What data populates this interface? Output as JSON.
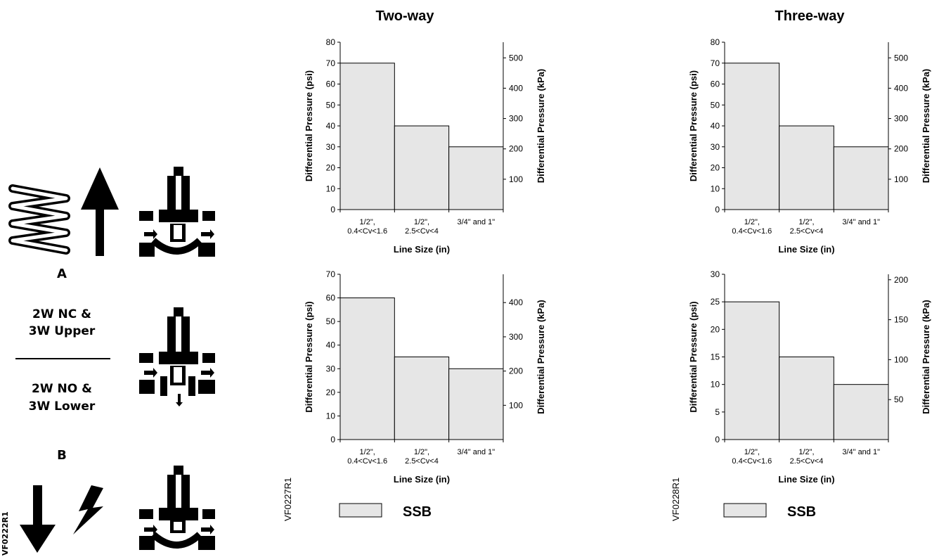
{
  "diagram": {
    "label_a": "A",
    "label_b": "B",
    "upper_line1": "2W NC &",
    "upper_line2": "3W Upper",
    "lower_line1": "2W NO &",
    "lower_line2": "3W Lower",
    "figure_code": "VF0222R1"
  },
  "sections": [
    {
      "title": "Two-way",
      "code": "VF0227R1",
      "legend_label": "SSB"
    },
    {
      "title": "Three-way",
      "code": "VF0228R1",
      "legend_label": "SSB"
    }
  ],
  "chart_data": [
    {
      "type": "bar",
      "title": "",
      "categories": [
        "1/2\", 0.4<Cv<1.6",
        "1/2\", 2.5<Cv<4",
        "3/4\" and 1\""
      ],
      "category_lines": [
        [
          "1/2\",",
          "0.4<Cv<1.6"
        ],
        [
          "1/2\",",
          "2.5<Cv<4"
        ],
        [
          "3/4\" and 1\""
        ]
      ],
      "series": [
        {
          "name": "SSB",
          "values": [
            70,
            40,
            30
          ]
        }
      ],
      "xlabel": "Line Size (in)",
      "ylabel": "Differential Pressure (psi)",
      "y2label": "Differential Pressure (kPa)",
      "ylim": [
        0,
        80
      ],
      "yticks": [
        0,
        10,
        20,
        30,
        40,
        50,
        60,
        70,
        80
      ],
      "y2ticks": [
        100,
        200,
        300,
        400,
        500
      ],
      "bar_color": "#e6e6e6",
      "grid": false
    },
    {
      "type": "bar",
      "title": "",
      "categories": [
        "1/2\", 0.4<Cv<1.6",
        "1/2\", 2.5<Cv<4",
        "3/4\" and 1\""
      ],
      "category_lines": [
        [
          "1/2\",",
          "0.4<Cv<1.6"
        ],
        [
          "1/2\",",
          "2.5<Cv<4"
        ],
        [
          "3/4\" and 1\""
        ]
      ],
      "series": [
        {
          "name": "SSB",
          "values": [
            70,
            40,
            30
          ]
        }
      ],
      "xlabel": "Line Size (in)",
      "ylabel": "Differential Pressure (psi)",
      "y2label": "Differential Pressure (kPa)",
      "ylim": [
        0,
        80
      ],
      "yticks": [
        0,
        10,
        20,
        30,
        40,
        50,
        60,
        70,
        80
      ],
      "y2ticks": [
        100,
        200,
        300,
        400,
        500
      ],
      "bar_color": "#e6e6e6",
      "grid": false
    },
    {
      "type": "bar",
      "title": "",
      "categories": [
        "1/2\", 0.4<Cv<1.6",
        "1/2\", 2.5<Cv<4",
        "3/4\" and 1\""
      ],
      "category_lines": [
        [
          "1/2\",",
          "0.4<Cv<1.6"
        ],
        [
          "1/2\",",
          "2.5<Cv<4"
        ],
        [
          "3/4\" and 1\""
        ]
      ],
      "series": [
        {
          "name": "SSB",
          "values": [
            60,
            35,
            30
          ]
        }
      ],
      "xlabel": "Line Size (in)",
      "ylabel": "Differential Pressure (psi)",
      "y2label": "Differential Pressure (kPa)",
      "ylim": [
        0,
        70
      ],
      "yticks": [
        0,
        10,
        20,
        30,
        40,
        50,
        60,
        70
      ],
      "y2ticks": [
        100,
        200,
        300,
        400
      ],
      "bar_color": "#e6e6e6",
      "grid": false
    },
    {
      "type": "bar",
      "title": "",
      "categories": [
        "1/2\", 0.4<Cv<1.6",
        "1/2\", 2.5<Cv<4",
        "3/4\" and 1\""
      ],
      "category_lines": [
        [
          "1/2\",",
          "0.4<Cv<1.6"
        ],
        [
          "1/2\",",
          "2.5<Cv<4"
        ],
        [
          "3/4\" and 1\""
        ]
      ],
      "series": [
        {
          "name": "SSB",
          "values": [
            25,
            15,
            10
          ]
        }
      ],
      "xlabel": "Line Size (in)",
      "ylabel": "Differential Pressure (psi)",
      "y2label": "Differential Pressure (kPa)",
      "ylim": [
        0,
        30
      ],
      "yticks": [
        0,
        5,
        10,
        15,
        20,
        25,
        30
      ],
      "y2ticks": [
        50,
        100,
        150,
        200
      ],
      "bar_color": "#e6e6e6",
      "grid": false
    }
  ]
}
